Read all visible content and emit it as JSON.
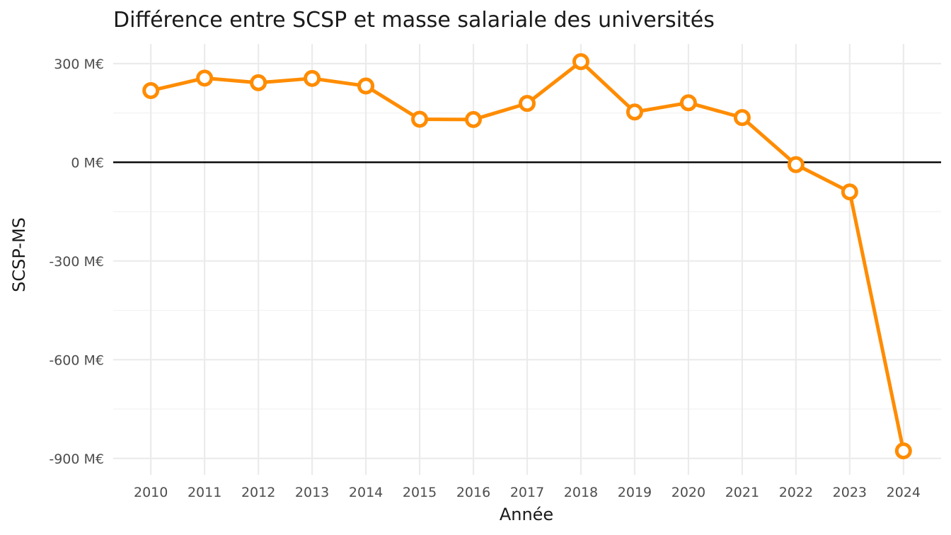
{
  "chart_data": {
    "type": "line",
    "title": "Différence entre SCSP et masse salariale des universités",
    "xlabel": "Année",
    "ylabel": "SCSP-MS",
    "x": [
      2010,
      2011,
      2012,
      2013,
      2014,
      2015,
      2016,
      2017,
      2018,
      2019,
      2020,
      2021,
      2022,
      2023,
      2024
    ],
    "xlim": [
      2009.3,
      2024.7
    ],
    "ylim": [
      -950,
      360
    ],
    "y_ticks": [
      300,
      0,
      -300,
      -600,
      -900
    ],
    "y_tick_labels": [
      "300 M€",
      "0 M€",
      "-300 M€",
      "-600 M€",
      "-900 M€"
    ],
    "y_minor_ticks": [
      150,
      -150,
      -450,
      -750
    ],
    "x_tick_labels": [
      "2010",
      "2011",
      "2012",
      "2013",
      "2014",
      "2015",
      "2016",
      "2017",
      "2018",
      "2019",
      "2020",
      "2021",
      "2022",
      "2023",
      "2024"
    ],
    "series": [
      {
        "values": [
          218,
          256,
          242,
          255,
          232,
          131,
          130,
          179,
          306,
          153,
          181,
          136,
          -7,
          -90,
          -877
        ],
        "color": "#ff8c00"
      }
    ],
    "reference_line": {
      "y": 0,
      "color": "#000000"
    },
    "grid": true,
    "legend": "none"
  }
}
